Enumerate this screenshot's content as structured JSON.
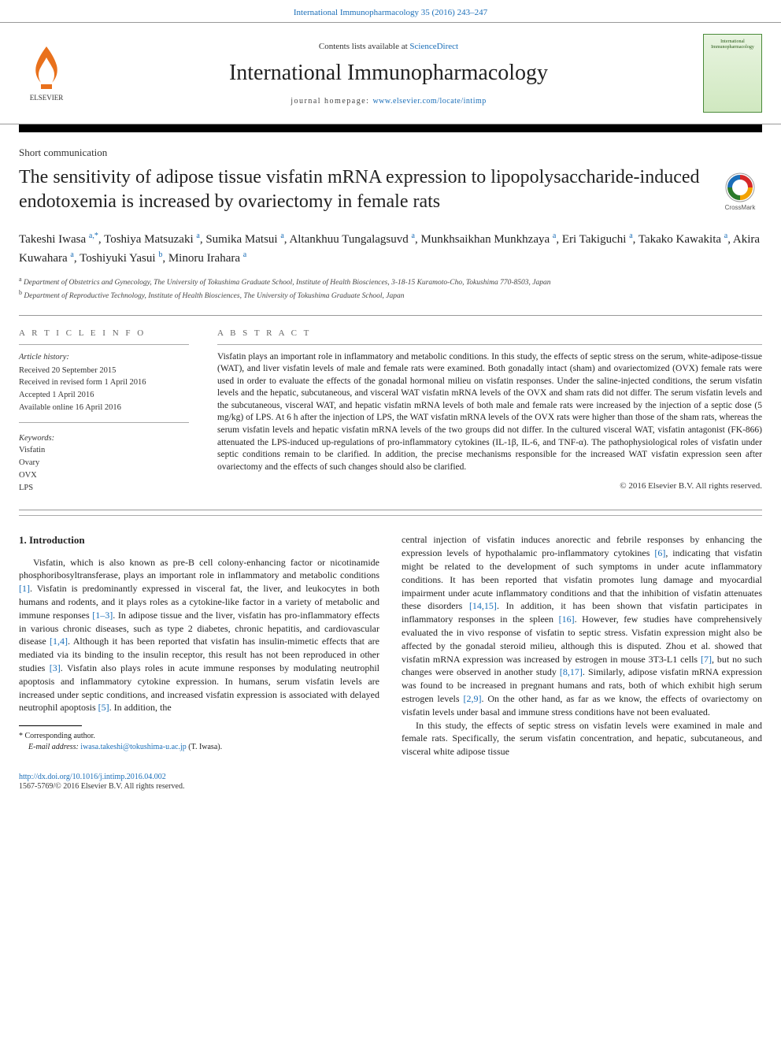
{
  "top_link": {
    "pre": "",
    "text": "International Immunopharmacology 35 (2016) 243–247"
  },
  "header": {
    "contents_pre": "Contents lists available at ",
    "contents_link": "ScienceDirect",
    "journal": "International Immunopharmacology",
    "homepage_pre": "journal homepage: ",
    "homepage_link": "www.elsevier.com/locate/intimp",
    "cover_text": "International Immunopharmacology"
  },
  "article_type": "Short communication",
  "title": "The sensitivity of adipose tissue visfatin mRNA expression to lipopolysaccharide-induced endotoxemia is increased by ovariectomy in female rats",
  "authors_html": "Takeshi Iwasa <sup>a,*</sup>, Toshiya Matsuzaki <sup>a</sup>, Sumika Matsui <sup>a</sup>, Altankhuu Tungalagsuvd <sup>a</sup>, Munkhsaikhan Munkhzaya <sup>a</sup>, Eri Takiguchi <sup>a</sup>, Takako Kawakita <sup>a</sup>, Akira Kuwahara <sup>a</sup>, Toshiyuki Yasui <sup>b</sup>, Minoru Irahara <sup>a</sup>",
  "affiliations": [
    {
      "sup": "a",
      "text": " Department of Obstetrics and Gynecology, The University of Tokushima Graduate School, Institute of Health Biosciences, 3-18-15 Kuramoto-Cho, Tokushima 770-8503, Japan"
    },
    {
      "sup": "b",
      "text": " Department of Reproductive Technology, Institute of Health Biosciences, The University of Tokushima Graduate School, Japan"
    }
  ],
  "info": {
    "left_head": "A R T I C L E   I N F O",
    "history_head": "Article history:",
    "received": "Received 20 September 2015",
    "revised": "Received in revised form 1 April 2016",
    "accepted": "Accepted 1 April 2016",
    "online": "Available online 16 April 2016",
    "kw_head": "Keywords:",
    "keywords": [
      "Visfatin",
      "Ovary",
      "OVX",
      "LPS"
    ]
  },
  "abstract": {
    "head": "A B S T R A C T",
    "text": "Visfatin plays an important role in inflammatory and metabolic conditions. In this study, the effects of septic stress on the serum, white-adipose-tissue (WAT), and liver visfatin levels of male and female rats were examined. Both gonadally intact (sham) and ovariectomized (OVX) female rats were used in order to evaluate the effects of the gonadal hormonal milieu on visfatin responses. Under the saline-injected conditions, the serum visfatin levels and the hepatic, subcutaneous, and visceral WAT visfatin mRNA levels of the OVX and sham rats did not differ. The serum visfatin levels and the subcutaneous, visceral WAT, and hepatic visfatin mRNA levels of both male and female rats were increased by the injection of a septic dose (5 mg/kg) of LPS. At 6 h after the injection of LPS, the WAT visfatin mRNA levels of the OVX rats were higher than those of the sham rats, whereas the serum visfatin levels and hepatic visfatin mRNA levels of the two groups did not differ. In the cultured visceral WAT, visfatin antagonist (FK-866) attenuated the LPS-induced up-regulations of pro-inflammatory cytokines (IL-1β, IL-6, and TNF-α). The pathophysiological roles of visfatin under septic conditions remain to be clarified. In addition, the precise mechanisms responsible for the increased WAT visfatin expression seen after ovariectomy and the effects of such changes should also be clarified.",
    "copyright": "© 2016 Elsevier B.V. All rights reserved."
  },
  "body": {
    "section1_head": "1. Introduction",
    "col1_p1_pre": "Visfatin, which is also known as pre-B cell colony-enhancing factor or nicotinamide phosphoribosyltransferase, plays an important role in inflammatory and metabolic conditions ",
    "ref1": "[1]",
    "col1_p1_mid1": ". Visfatin is predominantly expressed in visceral fat, the liver, and leukocytes in both humans and rodents, and it plays roles as a cytokine-like factor in a variety of metabolic and immune responses ",
    "ref2": "[1–3]",
    "col1_p1_mid2": ". In adipose tissue and the liver, visfatin has pro-inflammatory effects in various chronic diseases, such as type 2 diabetes, chronic hepatitis, and cardiovascular disease ",
    "ref3": "[1,4]",
    "col1_p1_mid3": ". Although it has been reported that visfatin has insulin-mimetic effects that are mediated via its binding to the insulin receptor, this result has not been reproduced in other studies ",
    "ref4": "[3]",
    "col1_p1_mid4": ". Visfatin also plays roles in acute immune responses by modulating neutrophil apoptosis and inflammatory cytokine expression. In humans, serum visfatin levels are increased under septic conditions, and increased visfatin expression is associated with delayed neutrophil apoptosis ",
    "ref5": "[5]",
    "col1_p1_end": ". In addition, the",
    "col2_p1_pre": "central injection of visfatin induces anorectic and febrile responses by enhancing the expression levels of hypothalamic pro-inflammatory cytokines ",
    "ref6": "[6]",
    "col2_p1_mid1": ", indicating that visfatin might be related to the development of such symptoms in under acute inflammatory conditions. It has been reported that visfatin promotes lung damage and myocardial impairment under acute inflammatory conditions and that the inhibition of visfatin attenuates these disorders ",
    "ref7": "[14,15]",
    "col2_p1_mid2": ". In addition, it has been shown that visfatin participates in inflammatory responses in the spleen ",
    "ref8": "[16]",
    "col2_p1_mid3": ". However, few studies have comprehensively evaluated the in vivo response of visfatin to septic stress. Visfatin expression might also be affected by the gonadal steroid milieu, although this is disputed. Zhou et al. showed that visfatin mRNA expression was increased by estrogen in mouse 3T3-L1 cells ",
    "ref9": "[7]",
    "col2_p1_mid4": ", but no such changes were observed in another study ",
    "ref10": "[8,17]",
    "col2_p1_mid5": ". Similarly, adipose visfatin mRNA expression was found to be increased in pregnant humans and rats, both of which exhibit high serum estrogen levels ",
    "ref11": "[2,9]",
    "col2_p1_end": ". On the other hand, as far as we know, the effects of ovariectomy on visfatin levels under basal and immune stress conditions have not been evaluated.",
    "col2_p2": "In this study, the effects of septic stress on visfatin levels were examined in male and female rats. Specifically, the serum visfatin concentration, and hepatic, subcutaneous, and visceral white adipose tissue"
  },
  "footnote": {
    "corr": "* Corresponding author.",
    "email_pre": "E-mail address: ",
    "email": "iwasa.takeshi@tokushima-u.ac.jp",
    "email_post": " (T. Iwasa)."
  },
  "footer": {
    "doi": "http://dx.doi.org/10.1016/j.intimp.2016.04.002",
    "issn": "1567-5769/© 2016 Elsevier B.V. All rights reserved."
  },
  "colors": {
    "link": "#1a6eb8",
    "elsevier": "#e9711c"
  }
}
